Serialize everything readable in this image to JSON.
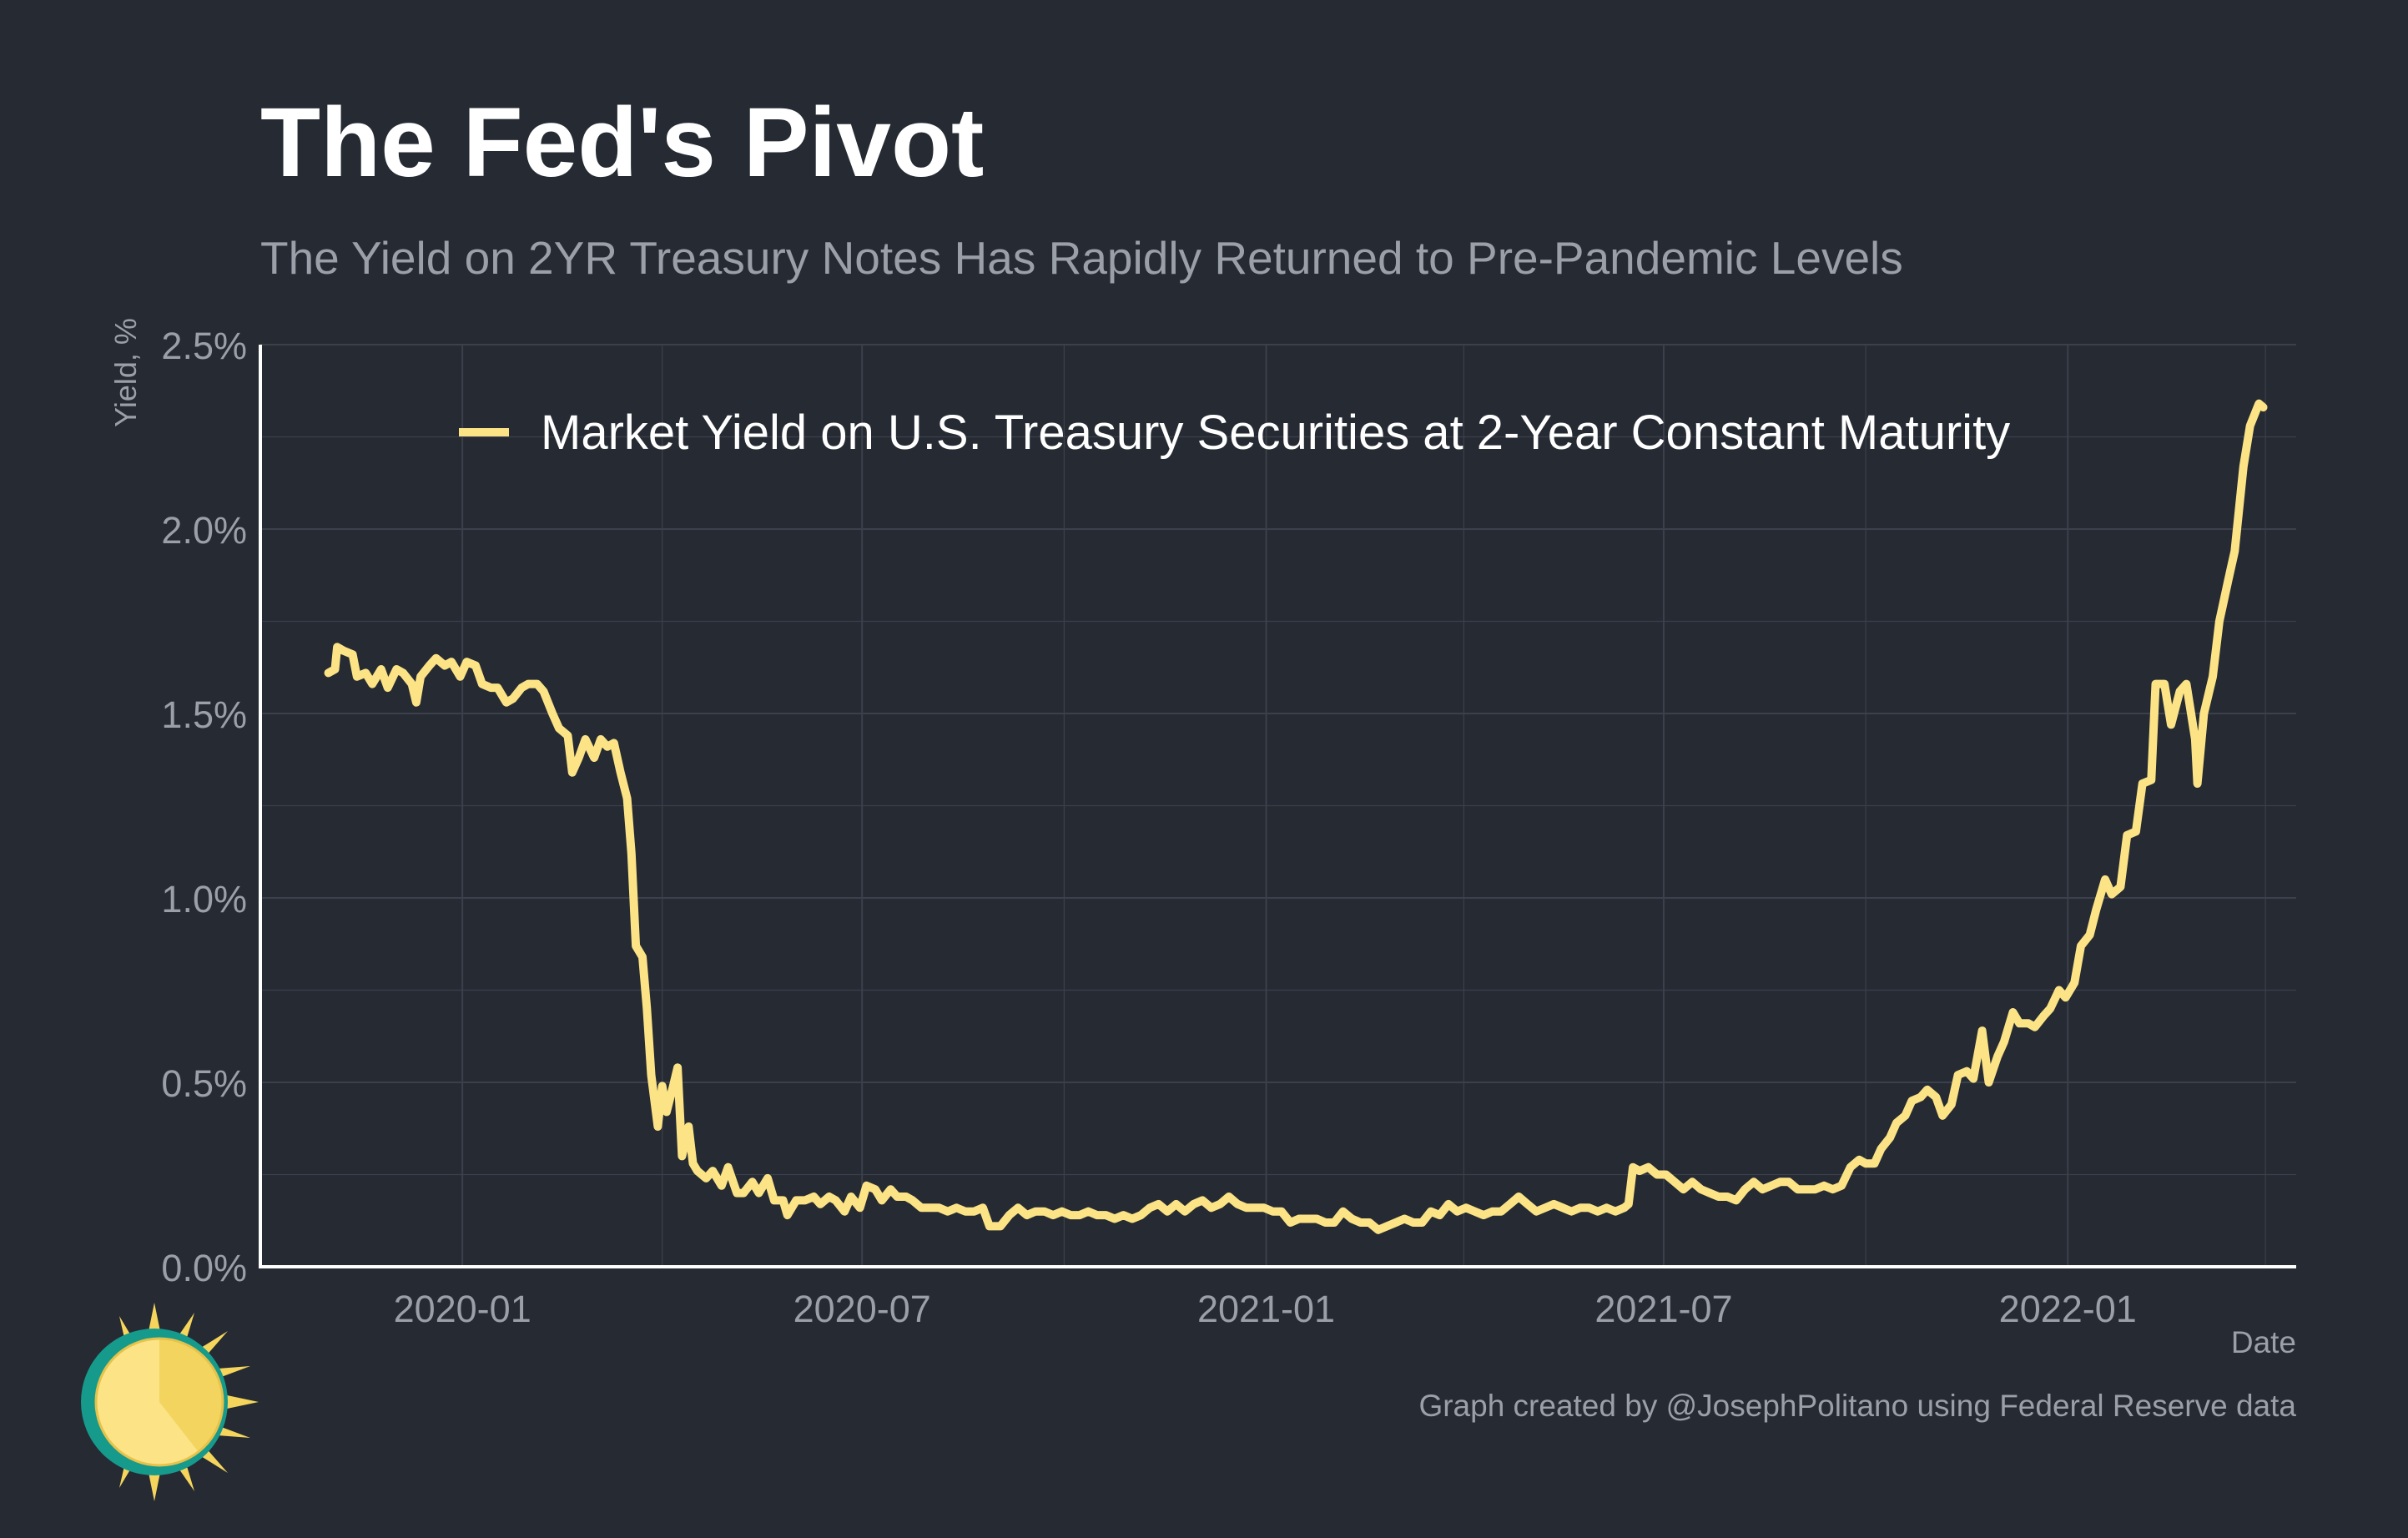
{
  "title": "The Fed's Pivot",
  "subtitle": "The Yield on 2YR Treasury Notes Has Rapidly Returned to Pre-Pandemic Levels",
  "caption": "Graph created by @JosephPolitano using Federal Reserve data",
  "colors": {
    "background": "#252a33",
    "series": "#fbe386",
    "grid": "#3b404a",
    "text_muted": "#9a9fa8",
    "axis": "#ffffff"
  },
  "chart_data": {
    "type": "line",
    "title": "The Fed's Pivot",
    "subtitle": "The Yield on 2YR Treasury Notes Has Rapidly Returned to Pre-Pandemic Levels",
    "xlabel": "Date",
    "ylabel": "Yield, %",
    "xlim": [
      "2019-10-01",
      "2022-04-15"
    ],
    "ylim": [
      0,
      2.5
    ],
    "x_ticks": [
      {
        "date": "2020-01-01",
        "label": "2020-01"
      },
      {
        "date": "2020-07-01",
        "label": "2020-07"
      },
      {
        "date": "2021-01-01",
        "label": "2021-01"
      },
      {
        "date": "2021-07-01",
        "label": "2021-07"
      },
      {
        "date": "2022-01-01",
        "label": "2022-01"
      }
    ],
    "x_minor_ticks": [
      "2019-10-01",
      "2020-04-01",
      "2020-10-01",
      "2021-04-01",
      "2021-10-01",
      "2022-04-01"
    ],
    "y_ticks": [
      {
        "value": 0,
        "label": "0.0%"
      },
      {
        "value": 0.5,
        "label": "0.5%"
      },
      {
        "value": 1.0,
        "label": "1.0%"
      },
      {
        "value": 1.5,
        "label": "1.5%"
      },
      {
        "value": 2.0,
        "label": "2.0%"
      },
      {
        "value": 2.5,
        "label": "2.5%"
      }
    ],
    "grid": true,
    "legend": {
      "position": "top-center"
    },
    "series": [
      {
        "name": "Market Yield on U.S. Treasury Securities at 2-Year Constant Maturity",
        "points": [
          [
            "2019-11-01",
            1.61
          ],
          [
            "2019-11-04",
            1.62
          ],
          [
            "2019-11-05",
            1.68
          ],
          [
            "2019-11-08",
            1.67
          ],
          [
            "2019-11-12",
            1.66
          ],
          [
            "2019-11-14",
            1.6
          ],
          [
            "2019-11-18",
            1.61
          ],
          [
            "2019-11-21",
            1.58
          ],
          [
            "2019-11-25",
            1.62
          ],
          [
            "2019-11-28",
            1.57
          ],
          [
            "2019-12-02",
            1.62
          ],
          [
            "2019-12-05",
            1.61
          ],
          [
            "2019-12-09",
            1.58
          ],
          [
            "2019-12-11",
            1.53
          ],
          [
            "2019-12-13",
            1.6
          ],
          [
            "2019-12-17",
            1.63
          ],
          [
            "2019-12-20",
            1.65
          ],
          [
            "2019-12-24",
            1.63
          ],
          [
            "2019-12-27",
            1.64
          ],
          [
            "2019-12-31",
            1.6
          ],
          [
            "2020-01-03",
            1.64
          ],
          [
            "2020-01-07",
            1.63
          ],
          [
            "2020-01-10",
            1.58
          ],
          [
            "2020-01-14",
            1.57
          ],
          [
            "2020-01-17",
            1.57
          ],
          [
            "2020-01-21",
            1.53
          ],
          [
            "2020-01-24",
            1.54
          ],
          [
            "2020-01-28",
            1.57
          ],
          [
            "2020-01-31",
            1.58
          ],
          [
            "2020-02-04",
            1.58
          ],
          [
            "2020-02-07",
            1.56
          ],
          [
            "2020-02-11",
            1.5
          ],
          [
            "2020-02-14",
            1.46
          ],
          [
            "2020-02-18",
            1.44
          ],
          [
            "2020-02-20",
            1.34
          ],
          [
            "2020-02-23",
            1.38
          ],
          [
            "2020-02-26",
            1.43
          ],
          [
            "2020-03-01",
            1.38
          ],
          [
            "2020-03-04",
            1.43
          ],
          [
            "2020-03-07",
            1.41
          ],
          [
            "2020-03-10",
            1.42
          ],
          [
            "2020-03-13",
            1.34
          ],
          [
            "2020-03-16",
            1.27
          ],
          [
            "2020-03-18",
            1.12
          ],
          [
            "2020-03-20",
            0.87
          ],
          [
            "2020-03-23",
            0.84
          ],
          [
            "2020-03-25",
            0.7
          ],
          [
            "2020-03-27",
            0.52
          ],
          [
            "2020-03-30",
            0.38
          ],
          [
            "2020-04-01",
            0.49
          ],
          [
            "2020-04-03",
            0.42
          ],
          [
            "2020-04-06",
            0.49
          ],
          [
            "2020-04-08",
            0.54
          ],
          [
            "2020-04-10",
            0.3
          ],
          [
            "2020-04-13",
            0.38
          ],
          [
            "2020-04-15",
            0.28
          ],
          [
            "2020-04-17",
            0.26
          ],
          [
            "2020-04-21",
            0.24
          ],
          [
            "2020-04-24",
            0.26
          ],
          [
            "2020-04-28",
            0.22
          ],
          [
            "2020-05-01",
            0.27
          ],
          [
            "2020-05-05",
            0.2
          ],
          [
            "2020-05-08",
            0.2
          ],
          [
            "2020-05-12",
            0.23
          ],
          [
            "2020-05-15",
            0.2
          ],
          [
            "2020-05-19",
            0.24
          ],
          [
            "2020-05-22",
            0.18
          ],
          [
            "2020-05-26",
            0.18
          ],
          [
            "2020-05-28",
            0.14
          ],
          [
            "2020-06-01",
            0.18
          ],
          [
            "2020-06-05",
            0.18
          ],
          [
            "2020-06-09",
            0.19
          ],
          [
            "2020-06-12",
            0.17
          ],
          [
            "2020-06-16",
            0.19
          ],
          [
            "2020-06-19",
            0.18
          ],
          [
            "2020-06-23",
            0.15
          ],
          [
            "2020-06-26",
            0.19
          ],
          [
            "2020-06-30",
            0.16
          ],
          [
            "2020-07-03",
            0.22
          ],
          [
            "2020-07-07",
            0.21
          ],
          [
            "2020-07-10",
            0.18
          ],
          [
            "2020-07-14",
            0.21
          ],
          [
            "2020-07-17",
            0.19
          ],
          [
            "2020-07-21",
            0.19
          ],
          [
            "2020-07-24",
            0.18
          ],
          [
            "2020-07-28",
            0.16
          ],
          [
            "2020-08-01",
            0.16
          ],
          [
            "2020-08-05",
            0.16
          ],
          [
            "2020-08-09",
            0.15
          ],
          [
            "2020-08-13",
            0.16
          ],
          [
            "2020-08-17",
            0.15
          ],
          [
            "2020-08-21",
            0.15
          ],
          [
            "2020-08-25",
            0.16
          ],
          [
            "2020-08-28",
            0.11
          ],
          [
            "2020-09-02",
            0.11
          ],
          [
            "2020-09-06",
            0.14
          ],
          [
            "2020-09-10",
            0.16
          ],
          [
            "2020-09-14",
            0.14
          ],
          [
            "2020-09-18",
            0.15
          ],
          [
            "2020-09-22",
            0.15
          ],
          [
            "2020-09-26",
            0.14
          ],
          [
            "2020-09-30",
            0.15
          ],
          [
            "2020-10-04",
            0.14
          ],
          [
            "2020-10-08",
            0.14
          ],
          [
            "2020-10-12",
            0.15
          ],
          [
            "2020-10-16",
            0.14
          ],
          [
            "2020-10-20",
            0.14
          ],
          [
            "2020-10-24",
            0.13
          ],
          [
            "2020-10-28",
            0.14
          ],
          [
            "2020-11-01",
            0.13
          ],
          [
            "2020-11-05",
            0.14
          ],
          [
            "2020-11-09",
            0.16
          ],
          [
            "2020-11-13",
            0.17
          ],
          [
            "2020-11-17",
            0.15
          ],
          [
            "2020-11-21",
            0.17
          ],
          [
            "2020-11-25",
            0.15
          ],
          [
            "2020-11-29",
            0.17
          ],
          [
            "2020-12-03",
            0.18
          ],
          [
            "2020-12-07",
            0.16
          ],
          [
            "2020-12-11",
            0.17
          ],
          [
            "2020-12-15",
            0.19
          ],
          [
            "2020-12-19",
            0.17
          ],
          [
            "2020-12-23",
            0.16
          ],
          [
            "2020-12-27",
            0.16
          ],
          [
            "2020-12-31",
            0.16
          ],
          [
            "2021-01-04",
            0.15
          ],
          [
            "2021-01-08",
            0.15
          ],
          [
            "2021-01-12",
            0.12
          ],
          [
            "2021-01-16",
            0.13
          ],
          [
            "2021-01-20",
            0.13
          ],
          [
            "2021-01-24",
            0.13
          ],
          [
            "2021-01-28",
            0.12
          ],
          [
            "2021-02-01",
            0.12
          ],
          [
            "2021-02-05",
            0.15
          ],
          [
            "2021-02-09",
            0.13
          ],
          [
            "2021-02-13",
            0.12
          ],
          [
            "2021-02-17",
            0.12
          ],
          [
            "2021-02-21",
            0.1
          ],
          [
            "2021-02-25",
            0.11
          ],
          [
            "2021-03-01",
            0.12
          ],
          [
            "2021-03-05",
            0.13
          ],
          [
            "2021-03-09",
            0.12
          ],
          [
            "2021-03-13",
            0.12
          ],
          [
            "2021-03-17",
            0.15
          ],
          [
            "2021-03-21",
            0.14
          ],
          [
            "2021-03-25",
            0.17
          ],
          [
            "2021-03-29",
            0.15
          ],
          [
            "2021-04-02",
            0.16
          ],
          [
            "2021-04-06",
            0.15
          ],
          [
            "2021-04-10",
            0.14
          ],
          [
            "2021-04-14",
            0.15
          ],
          [
            "2021-04-18",
            0.15
          ],
          [
            "2021-04-22",
            0.17
          ],
          [
            "2021-04-26",
            0.19
          ],
          [
            "2021-04-30",
            0.17
          ],
          [
            "2021-05-04",
            0.15
          ],
          [
            "2021-05-08",
            0.16
          ],
          [
            "2021-05-12",
            0.17
          ],
          [
            "2021-05-16",
            0.16
          ],
          [
            "2021-05-20",
            0.15
          ],
          [
            "2021-05-24",
            0.16
          ],
          [
            "2021-05-28",
            0.16
          ],
          [
            "2021-06-01",
            0.15
          ],
          [
            "2021-06-05",
            0.16
          ],
          [
            "2021-06-09",
            0.15
          ],
          [
            "2021-06-13",
            0.16
          ],
          [
            "2021-06-15",
            0.17
          ],
          [
            "2021-06-17",
            0.27
          ],
          [
            "2021-06-20",
            0.26
          ],
          [
            "2021-06-24",
            0.27
          ],
          [
            "2021-06-28",
            0.25
          ],
          [
            "2021-07-02",
            0.25
          ],
          [
            "2021-07-06",
            0.23
          ],
          [
            "2021-07-10",
            0.21
          ],
          [
            "2021-07-14",
            0.23
          ],
          [
            "2021-07-18",
            0.21
          ],
          [
            "2021-07-22",
            0.2
          ],
          [
            "2021-07-26",
            0.19
          ],
          [
            "2021-07-30",
            0.19
          ],
          [
            "2021-08-03",
            0.18
          ],
          [
            "2021-08-07",
            0.21
          ],
          [
            "2021-08-11",
            0.23
          ],
          [
            "2021-08-15",
            0.21
          ],
          [
            "2021-08-19",
            0.22
          ],
          [
            "2021-08-23",
            0.23
          ],
          [
            "2021-08-27",
            0.23
          ],
          [
            "2021-08-31",
            0.21
          ],
          [
            "2021-09-04",
            0.21
          ],
          [
            "2021-09-08",
            0.21
          ],
          [
            "2021-09-12",
            0.22
          ],
          [
            "2021-09-16",
            0.21
          ],
          [
            "2021-09-20",
            0.22
          ],
          [
            "2021-09-24",
            0.27
          ],
          [
            "2021-09-28",
            0.29
          ],
          [
            "2021-10-01",
            0.28
          ],
          [
            "2021-10-05",
            0.28
          ],
          [
            "2021-10-08",
            0.32
          ],
          [
            "2021-10-12",
            0.35
          ],
          [
            "2021-10-15",
            0.39
          ],
          [
            "2021-10-19",
            0.41
          ],
          [
            "2021-10-22",
            0.45
          ],
          [
            "2021-10-26",
            0.46
          ],
          [
            "2021-10-29",
            0.48
          ],
          [
            "2021-11-02",
            0.46
          ],
          [
            "2021-11-05",
            0.41
          ],
          [
            "2021-11-09",
            0.44
          ],
          [
            "2021-11-12",
            0.52
          ],
          [
            "2021-11-16",
            0.53
          ],
          [
            "2021-11-19",
            0.51
          ],
          [
            "2021-11-23",
            0.64
          ],
          [
            "2021-11-26",
            0.5
          ],
          [
            "2021-11-30",
            0.57
          ],
          [
            "2021-12-03",
            0.61
          ],
          [
            "2021-12-07",
            0.69
          ],
          [
            "2021-12-10",
            0.66
          ],
          [
            "2021-12-14",
            0.66
          ],
          [
            "2021-12-17",
            0.65
          ],
          [
            "2021-12-21",
            0.68
          ],
          [
            "2021-12-24",
            0.7
          ],
          [
            "2021-12-28",
            0.75
          ],
          [
            "2021-12-31",
            0.73
          ],
          [
            "2022-01-04",
            0.77
          ],
          [
            "2022-01-07",
            0.87
          ],
          [
            "2022-01-11",
            0.9
          ],
          [
            "2022-01-14",
            0.97
          ],
          [
            "2022-01-18",
            1.05
          ],
          [
            "2022-01-21",
            1.01
          ],
          [
            "2022-01-25",
            1.03
          ],
          [
            "2022-01-28",
            1.17
          ],
          [
            "2022-02-01",
            1.18
          ],
          [
            "2022-02-04",
            1.31
          ],
          [
            "2022-02-08",
            1.32
          ],
          [
            "2022-02-10",
            1.58
          ],
          [
            "2022-02-14",
            1.58
          ],
          [
            "2022-02-17",
            1.47
          ],
          [
            "2022-02-21",
            1.56
          ],
          [
            "2022-02-24",
            1.58
          ],
          [
            "2022-02-28",
            1.43
          ],
          [
            "2022-03-01",
            1.31
          ],
          [
            "2022-03-04",
            1.5
          ],
          [
            "2022-03-08",
            1.6
          ],
          [
            "2022-03-11",
            1.75
          ],
          [
            "2022-03-15",
            1.86
          ],
          [
            "2022-03-18",
            1.94
          ],
          [
            "2022-03-22",
            2.17
          ],
          [
            "2022-03-25",
            2.28
          ],
          [
            "2022-03-29",
            2.34
          ],
          [
            "2022-03-31",
            2.33
          ]
        ]
      }
    ]
  },
  "logo": {
    "icon": "sun-logo-icon"
  }
}
